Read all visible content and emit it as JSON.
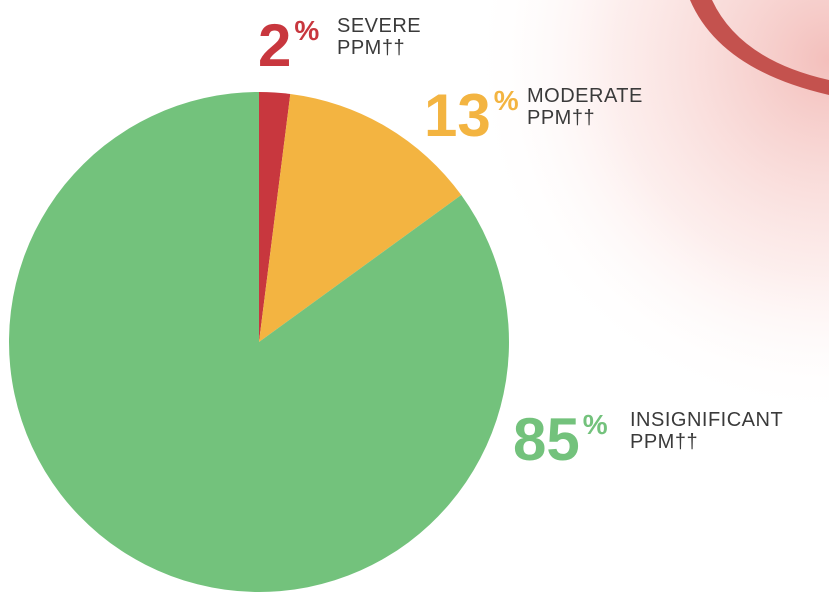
{
  "chart_data": {
    "type": "pie",
    "categories": [
      "SEVERE PPM††",
      "MODERATE PPM††",
      "INSIGNIFICANT PPM††"
    ],
    "values": [
      2,
      13,
      85
    ],
    "value_labels": [
      "2%",
      "13%",
      "85%"
    ],
    "colors": [
      "#c8373e",
      "#f3b441",
      "#73c27c"
    ]
  }
}
